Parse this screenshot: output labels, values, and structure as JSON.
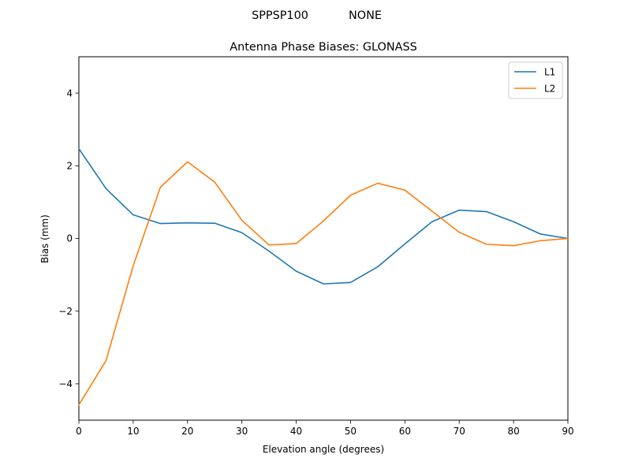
{
  "figure": {
    "suptitle_left": "SPPSP100",
    "suptitle_right": "NONE"
  },
  "chart_data": {
    "type": "line",
    "title": "Antenna Phase Biases: GLONASS",
    "xlabel": "Elevation angle (degrees)",
    "ylabel": "Bias (mm)",
    "xlim": [
      0,
      90
    ],
    "ylim": [
      -5,
      5
    ],
    "xticks": [
      0,
      10,
      20,
      30,
      40,
      50,
      60,
      70,
      80,
      90
    ],
    "yticks": [
      -4,
      -2,
      0,
      2,
      4
    ],
    "grid": false,
    "legend_position": "top-right",
    "x": [
      0,
      5,
      10,
      15,
      20,
      25,
      30,
      35,
      40,
      45,
      50,
      55,
      60,
      65,
      70,
      75,
      80,
      85,
      90
    ],
    "series": [
      {
        "name": "L1",
        "color": "#1f77b4",
        "values": [
          2.47,
          1.37,
          0.65,
          0.41,
          0.43,
          0.42,
          0.16,
          -0.35,
          -0.9,
          -1.25,
          -1.21,
          -0.78,
          -0.15,
          0.46,
          0.78,
          0.74,
          0.46,
          0.12,
          0.0
        ]
      },
      {
        "name": "L2",
        "color": "#ff7f0e",
        "values": [
          -4.58,
          -3.36,
          -0.75,
          1.41,
          2.11,
          1.55,
          0.5,
          -0.18,
          -0.14,
          0.48,
          1.19,
          1.52,
          1.33,
          0.75,
          0.17,
          -0.16,
          -0.2,
          -0.06,
          0.0
        ]
      }
    ]
  }
}
